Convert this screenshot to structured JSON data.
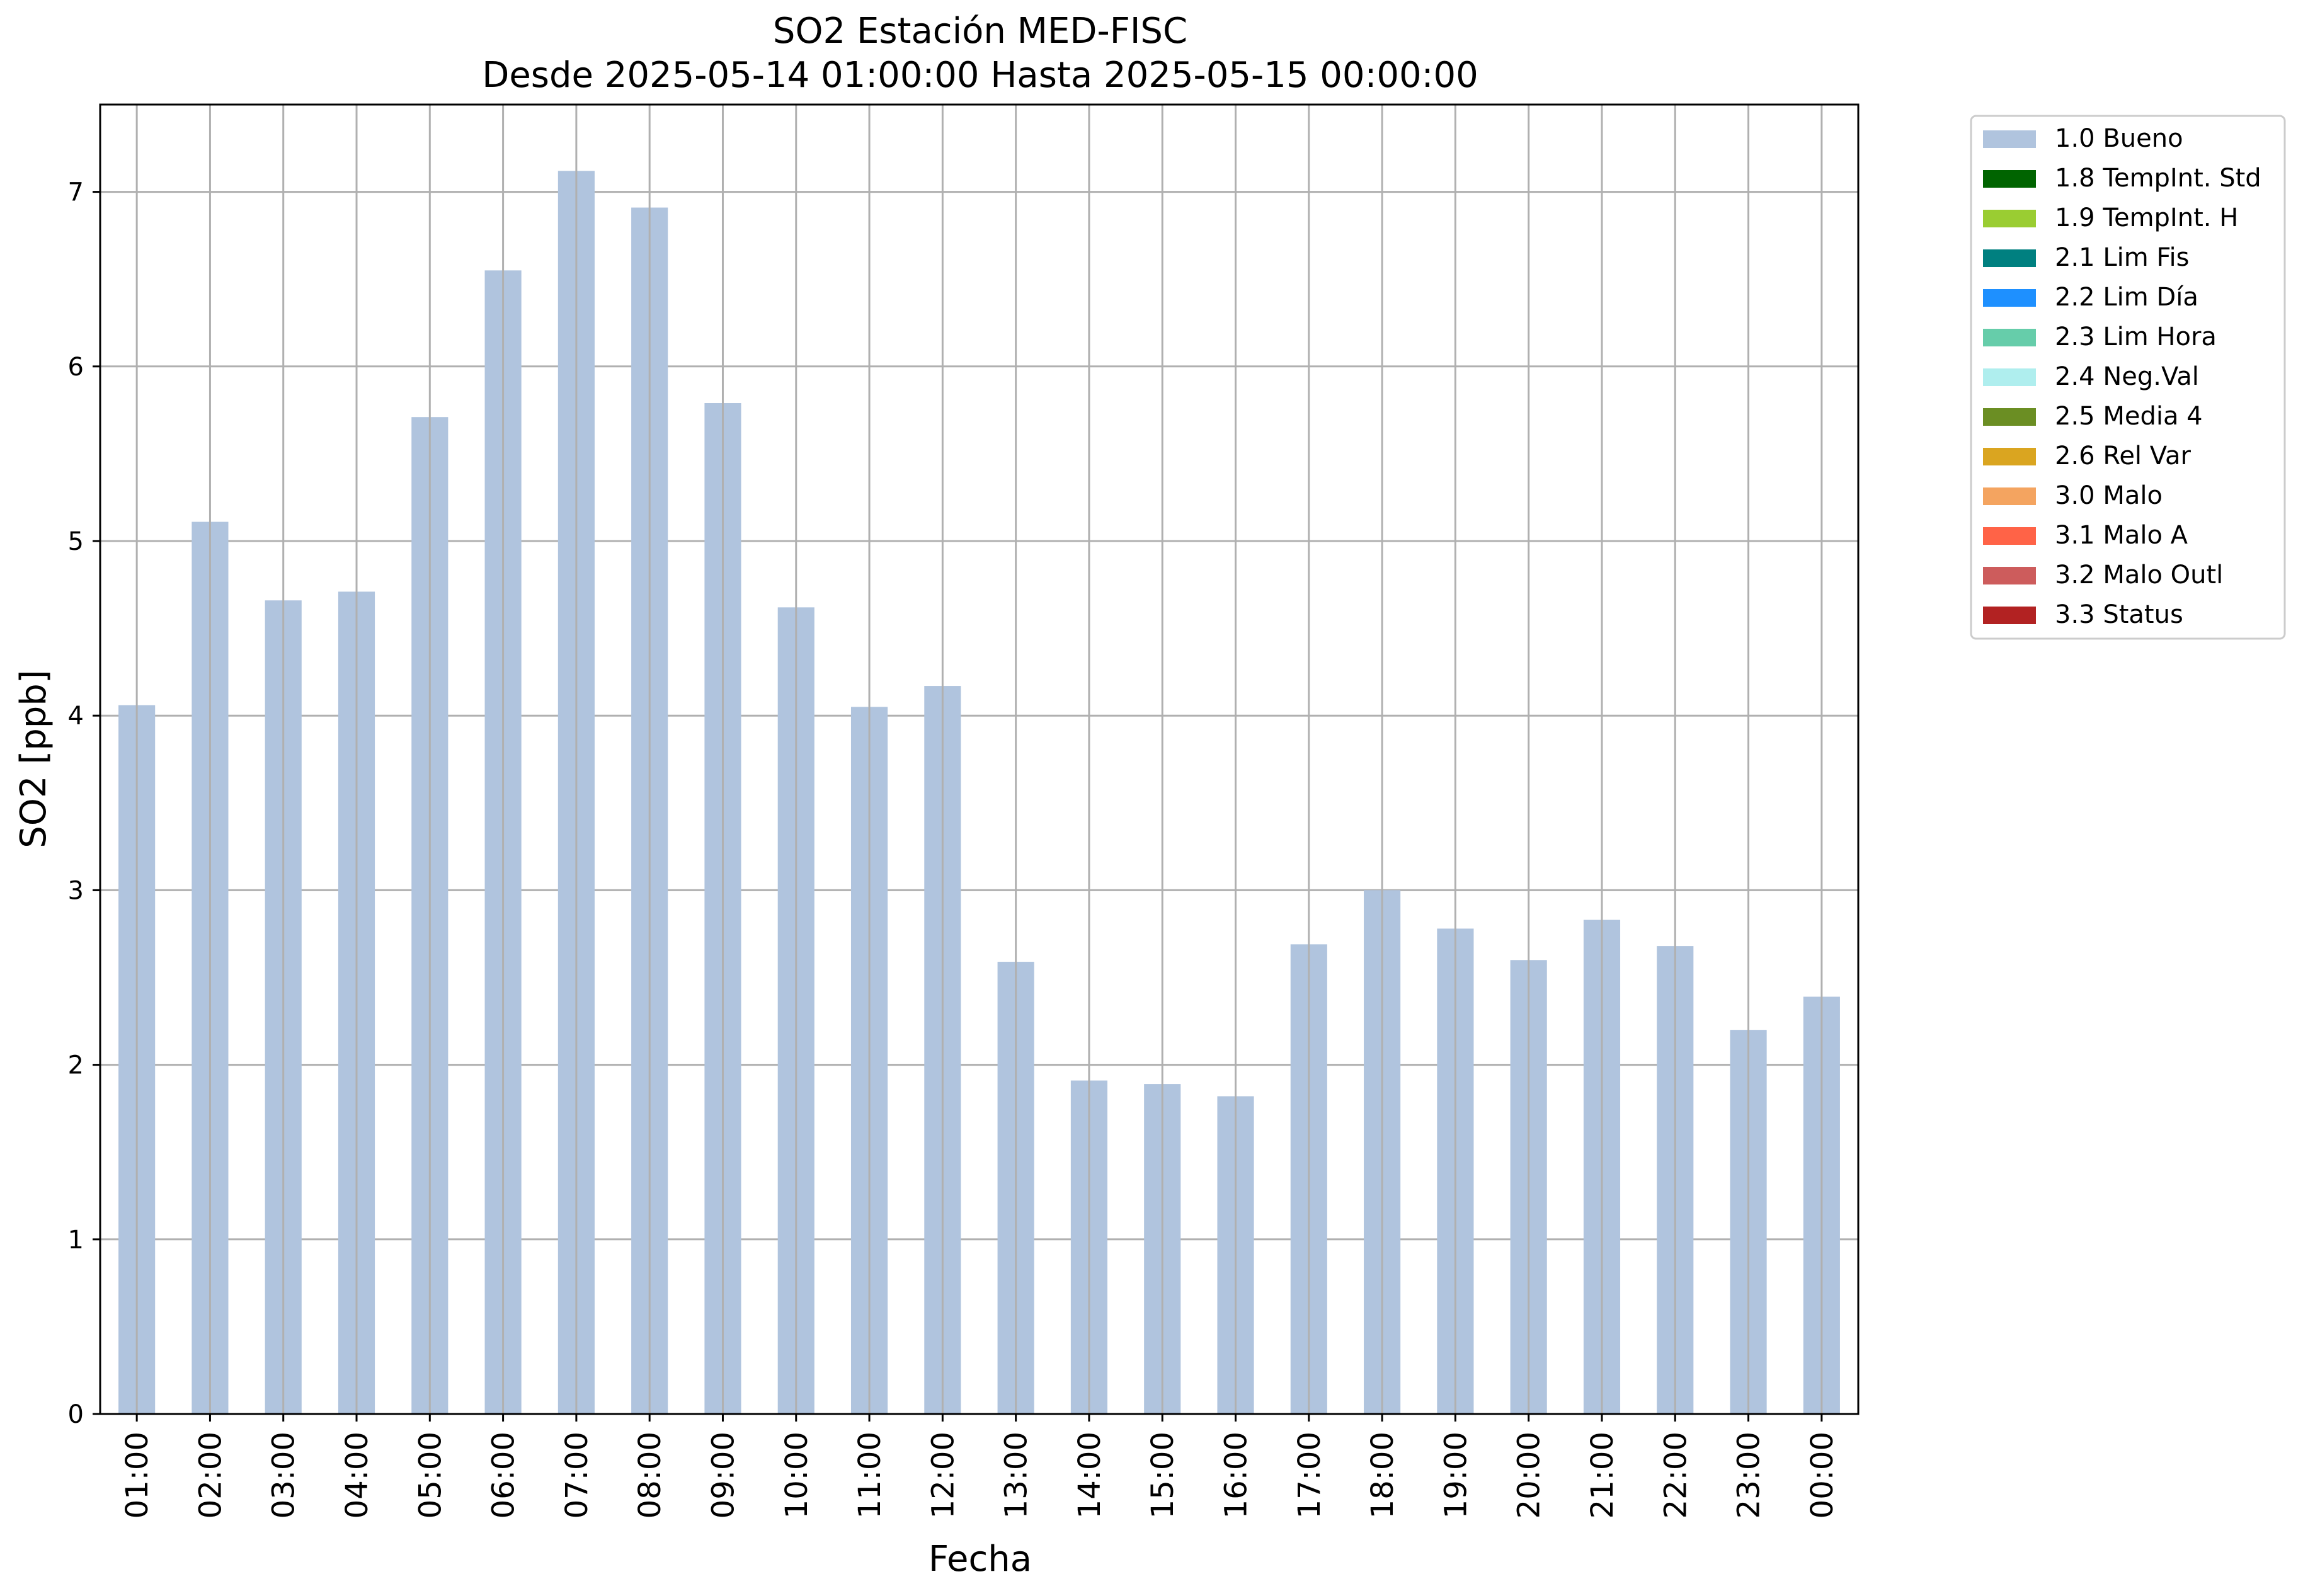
{
  "chart_data": {
    "type": "bar",
    "title_line1": "SO2 Estación MED-FISC",
    "title_line2": "Desde 2025-05-14 01:00:00 Hasta 2025-05-15 00:00:00",
    "xlabel": "Fecha",
    "ylabel": "SO2 [ppb]",
    "ylim": [
      0,
      7.5
    ],
    "yticks": [
      0,
      1,
      2,
      3,
      4,
      5,
      6,
      7
    ],
    "grid": true,
    "legend_position": "outside-top-right",
    "categories": [
      "01:00",
      "02:00",
      "03:00",
      "04:00",
      "05:00",
      "06:00",
      "07:00",
      "08:00",
      "09:00",
      "10:00",
      "11:00",
      "12:00",
      "13:00",
      "14:00",
      "15:00",
      "16:00",
      "17:00",
      "18:00",
      "19:00",
      "20:00",
      "21:00",
      "22:00",
      "23:00",
      "00:00"
    ],
    "series": [
      {
        "name": "1.0 Bueno",
        "color": "#b0c4de",
        "values": [
          4.06,
          5.11,
          4.66,
          4.71,
          5.71,
          6.55,
          7.12,
          6.91,
          5.79,
          4.62,
          4.05,
          4.17,
          2.59,
          1.91,
          1.89,
          1.82,
          2.69,
          3.0,
          2.78,
          2.6,
          2.83,
          2.68,
          2.2,
          2.39
        ]
      }
    ],
    "legend": [
      {
        "label": "1.0 Bueno",
        "color": "#b0c4de"
      },
      {
        "label": "1.8 TempInt. Std",
        "color": "#006400"
      },
      {
        "label": "1.9 TempInt. H",
        "color": "#9acd32"
      },
      {
        "label": "2.1 Lim Fis",
        "color": "#008080"
      },
      {
        "label": "2.2 Lim Día",
        "color": "#1e90ff"
      },
      {
        "label": "2.3 Lim Hora",
        "color": "#66cdaa"
      },
      {
        "label": "2.4 Neg.Val",
        "color": "#afeeee"
      },
      {
        "label": "2.5 Media 4",
        "color": "#6b8e23"
      },
      {
        "label": "2.6 Rel Var",
        "color": "#daa520"
      },
      {
        "label": "3.0 Malo",
        "color": "#f4a460"
      },
      {
        "label": "3.1 Malo A",
        "color": "#ff6347"
      },
      {
        "label": "3.2 Malo Outl",
        "color": "#cd5c5c"
      },
      {
        "label": "3.3 Status",
        "color": "#b22222"
      }
    ]
  }
}
